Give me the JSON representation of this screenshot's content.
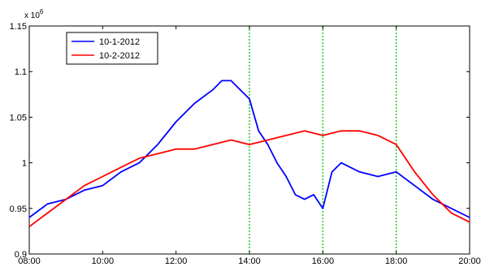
{
  "chart_data": {
    "type": "line",
    "exponent_label": "x 10",
    "exponent_power": "6",
    "xlim": [
      8,
      20
    ],
    "ylim": [
      0.9,
      1.15
    ],
    "x_ticks": [
      {
        "value": 8,
        "label": "08:00"
      },
      {
        "value": 10,
        "label": "10:00"
      },
      {
        "value": 12,
        "label": "12:00"
      },
      {
        "value": 14,
        "label": "14:00"
      },
      {
        "value": 16,
        "label": "16:00"
      },
      {
        "value": 18,
        "label": "18:00"
      },
      {
        "value": 20,
        "label": "20:00"
      }
    ],
    "y_ticks": [
      {
        "value": 0.9,
        "label": "0.9"
      },
      {
        "value": 0.95,
        "label": "0.95"
      },
      {
        "value": 1.0,
        "label": "1"
      },
      {
        "value": 1.05,
        "label": "1.05"
      },
      {
        "value": 1.1,
        "label": "1.1"
      },
      {
        "value": 1.15,
        "label": "1.15"
      }
    ],
    "grid": false,
    "legend_position": "top-left",
    "vertical_markers": {
      "x": [
        14,
        16,
        18
      ],
      "color": "#22cc22",
      "style": "dotted"
    },
    "series": [
      {
        "name": "10-1-2012",
        "color": "#0000ff",
        "x": [
          8.0,
          8.5,
          9.0,
          9.5,
          10.0,
          10.5,
          11.0,
          11.5,
          12.0,
          12.5,
          13.0,
          13.25,
          13.5,
          13.75,
          14.0,
          14.25,
          14.5,
          14.75,
          15.0,
          15.25,
          15.5,
          15.75,
          16.0,
          16.25,
          16.5,
          17.0,
          17.5,
          18.0,
          18.5,
          19.0,
          19.5,
          20.0
        ],
        "y": [
          0.94,
          0.955,
          0.96,
          0.97,
          0.975,
          0.99,
          1.0,
          1.02,
          1.045,
          1.065,
          1.08,
          1.09,
          1.09,
          1.08,
          1.07,
          1.035,
          1.02,
          1.0,
          0.985,
          0.965,
          0.96,
          0.965,
          0.95,
          0.99,
          1.0,
          0.99,
          0.985,
          0.99,
          0.975,
          0.96,
          0.95,
          0.94
        ]
      },
      {
        "name": "10-2-2012",
        "color": "#ff0000",
        "x": [
          8.0,
          8.5,
          9.0,
          9.5,
          10.0,
          10.5,
          11.0,
          11.5,
          12.0,
          12.5,
          13.0,
          13.5,
          14.0,
          14.5,
          15.0,
          15.5,
          16.0,
          16.5,
          17.0,
          17.5,
          18.0,
          18.5,
          19.0,
          19.5,
          20.0
        ],
        "y": [
          0.93,
          0.945,
          0.96,
          0.975,
          0.985,
          0.995,
          1.005,
          1.01,
          1.015,
          1.015,
          1.02,
          1.025,
          1.02,
          1.025,
          1.03,
          1.035,
          1.03,
          1.035,
          1.035,
          1.03,
          1.02,
          0.99,
          0.965,
          0.945,
          0.935
        ]
      }
    ]
  }
}
